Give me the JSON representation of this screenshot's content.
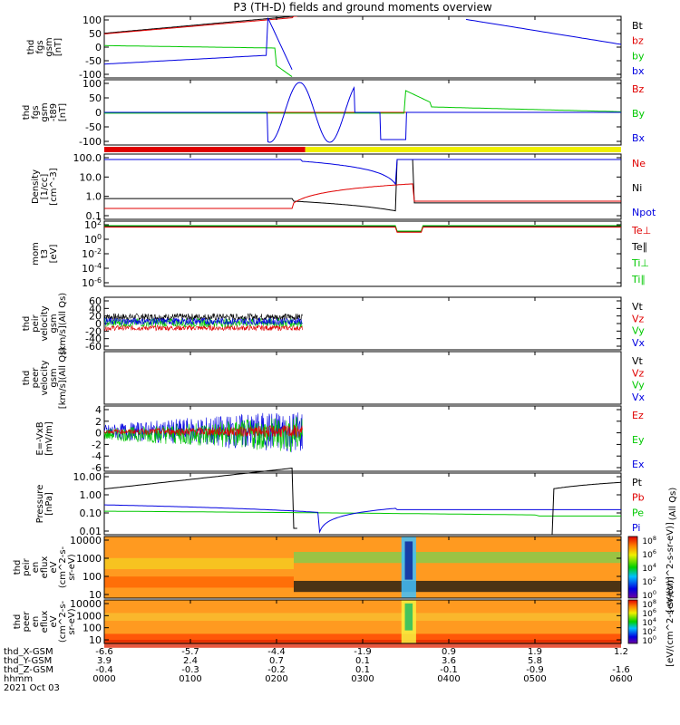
{
  "title": "P3 (TH-D) fields and ground moments overview",
  "colors": {
    "black": "#000000",
    "red": "#e00000",
    "green": "#00c800",
    "blue": "#0000e0",
    "yellow": "#f0f000"
  },
  "chart_data": [
    {
      "type": "line",
      "ylabel": [
        "thd",
        "fgs",
        "gsm",
        "[nT]"
      ],
      "yticks": [
        "100",
        "50",
        "0",
        "-50",
        "-100"
      ],
      "ylim": [
        -100,
        100
      ],
      "legend": [
        {
          "label": "Bt",
          "color": "black"
        },
        {
          "label": "bz",
          "color": "red"
        },
        {
          "label": "by",
          "color": "green"
        },
        {
          "label": "bx",
          "color": "blue"
        }
      ]
    },
    {
      "type": "line",
      "ylabel": [
        "thd",
        "fgs",
        "gsm",
        "-t89",
        "[nT]"
      ],
      "yticks": [
        "100",
        "50",
        "0",
        "-50",
        "-100"
      ],
      "ylim": [
        -120,
        120
      ],
      "legend": [
        {
          "label": "Bz",
          "color": "red"
        },
        {
          "label": "By",
          "color": "green"
        },
        {
          "label": "Bx",
          "color": "blue"
        }
      ]
    },
    {
      "type": "line",
      "scale": "log",
      "ylabel": [
        "Density",
        "[1/cc]",
        "[cm^-3]"
      ],
      "yticks": [
        "100.0",
        "10.0",
        "1.0",
        "0.1"
      ],
      "ylim": [
        0.05,
        200
      ],
      "legend": [
        {
          "label": "Ne",
          "color": "red"
        },
        {
          "label": "Ni",
          "color": "black"
        },
        {
          "label": "Npot",
          "color": "blue"
        }
      ]
    },
    {
      "type": "line",
      "scale": "log",
      "ylabel": [
        "mom",
        "t3",
        "[eV]"
      ],
      "yticks": [
        "10^2",
        "10^0",
        "10^-2",
        "10^-4",
        "10^-6"
      ],
      "ylim": [
        1e-07,
        1000
      ],
      "legend": [
        {
          "label": "Te⊥",
          "color": "red"
        },
        {
          "label": "Te∥",
          "color": "black"
        },
        {
          "label": "Ti⊥",
          "color": "green"
        },
        {
          "label": "Ti∥",
          "color": "green"
        }
      ]
    },
    {
      "type": "line",
      "ylabel": [
        "thd",
        "peir",
        "velocity",
        "gsm",
        "[km/s](All Qs)"
      ],
      "yticks": [
        "60",
        "40",
        "20",
        "0",
        "-20",
        "-40",
        "-60"
      ],
      "ylim": [
        -60,
        60
      ],
      "legend": [
        {
          "label": "Vt",
          "color": "black"
        },
        {
          "label": "Vz",
          "color": "red"
        },
        {
          "label": "Vy",
          "color": "green"
        },
        {
          "label": "Vx",
          "color": "blue"
        }
      ]
    },
    {
      "type": "line",
      "ylabel": [
        "thd",
        "peer",
        "velocity",
        "gsm",
        "[km/s](All Qs)"
      ],
      "yticks": [],
      "ylim": [
        -60,
        60
      ],
      "legend": [
        {
          "label": "Vt",
          "color": "black"
        },
        {
          "label": "Vz",
          "color": "red"
        },
        {
          "label": "Vy",
          "color": "green"
        },
        {
          "label": "Vx",
          "color": "blue"
        }
      ]
    },
    {
      "type": "line",
      "ylabel": [
        "E=-VxB",
        "[mV/m]"
      ],
      "yticks": [
        "4",
        "2",
        "0",
        "-2",
        "-4",
        "-6"
      ],
      "ylim": [
        -6.5,
        5
      ],
      "legend": [
        {
          "label": "Ez",
          "color": "red"
        },
        {
          "label": "Ey",
          "color": "green"
        },
        {
          "label": "Ex",
          "color": "blue"
        }
      ]
    },
    {
      "type": "line",
      "scale": "log",
      "ylabel": [
        "Pressure",
        "[nPa]"
      ],
      "yticks": [
        "10.00",
        "1.00",
        "0.10",
        "0.01"
      ],
      "ylim": [
        0.004,
        30
      ],
      "legend": [
        {
          "label": "Pt",
          "color": "black"
        },
        {
          "label": "Pb",
          "color": "red"
        },
        {
          "label": "Pe",
          "color": "green"
        },
        {
          "label": "Pi",
          "color": "blue"
        }
      ],
      "side_label": "(All Qs)"
    },
    {
      "type": "heatmap",
      "ylabel": [
        "thd",
        "peir",
        "en",
        "eflux",
        "eV",
        "(cm^2-s-",
        "sr-eV)"
      ],
      "yticks": [
        "10000",
        "1000",
        "100",
        "10"
      ],
      "ylim": [
        5,
        30000
      ]
    },
    {
      "type": "heatmap",
      "ylabel": [
        "thd",
        "peer",
        "en",
        "eflux",
        "eV",
        "(cm^2-s-",
        "sr-eV)"
      ],
      "yticks": [
        "10000",
        "1000",
        "100",
        "10"
      ],
      "ylim": [
        5,
        30000
      ]
    }
  ],
  "colorbar": {
    "ticks": [
      "10^8",
      "10^6",
      "10^4",
      "10^2",
      "10^0"
    ],
    "ticks_lower": [
      "10^8",
      "10^6",
      "10^4",
      "10^2",
      "10^0"
    ],
    "label": "[eV/(cm^2-s-sr-eV)]",
    "label2": "[eV/(cm^2-s-sr-eV)]"
  },
  "mode_bar": {
    "colors": [
      "red",
      "yellow"
    ],
    "switch_hhmm": "0220"
  },
  "x_axis": {
    "rows": [
      {
        "label": "thd_X-GSM",
        "values": [
          "-6.6",
          "-5.7",
          "-4.4",
          "-1.9",
          "0.9",
          "1.9",
          "1.2"
        ]
      },
      {
        "label": "thd_Y-GSM",
        "values": [
          "3.9",
          "2.4",
          "0.7",
          "0.1",
          "3.6",
          "5.8",
          ""
        ]
      },
      {
        "label": "thd_Z-GSM",
        "values": [
          "-0.4",
          "-0.3",
          "-0.2",
          "0.1",
          "-0.1",
          "-0.9",
          "-1.6"
        ]
      },
      {
        "label": "hhmm",
        "values": [
          "0000",
          "0100",
          "0200",
          "0300",
          "0400",
          "0500",
          "0600"
        ]
      }
    ],
    "xlim_hours": [
      0,
      6
    ],
    "date": "2021 Oct 03"
  }
}
